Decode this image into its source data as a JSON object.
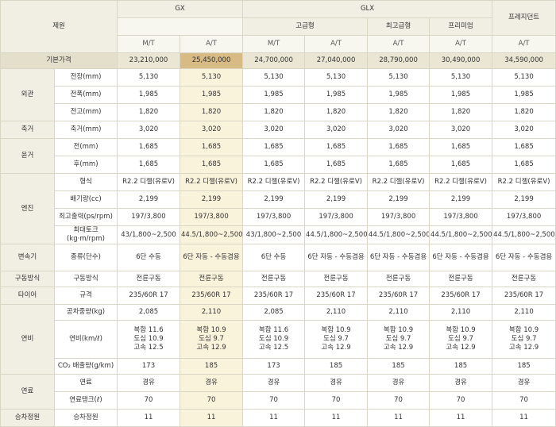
{
  "header": {
    "spec_label": "제원",
    "gx": "GX",
    "glx": "GLX",
    "president": "프레지던트",
    "sub_groups": {
      "standard": "고급형",
      "premium_top": "최고급형",
      "premium": "프리미엄"
    },
    "transmissions": [
      "M/T",
      "A/T",
      "M/T",
      "A/T",
      "A/T",
      "A/T",
      "A/T"
    ]
  },
  "price": {
    "label": "기본가격",
    "values": [
      "23,210,000",
      "25,450,000",
      "24,700,000",
      "27,040,000",
      "28,790,000",
      "30,490,000",
      "34,590,000"
    ]
  },
  "groups": {
    "exterior": "외관",
    "wheelbase": "축거",
    "tread": "윤거",
    "engine": "엔진",
    "transmission": "변속기",
    "drive": "구동방식",
    "tire": "타이어",
    "fuel_economy": "연비",
    "fuel": "연료",
    "seating": "승차정원"
  },
  "rows": [
    {
      "label": "전장(mm)",
      "values": [
        "5,130",
        "5,130",
        "5,130",
        "5,130",
        "5,130",
        "5,130",
        "5,130"
      ]
    },
    {
      "label": "전폭(mm)",
      "values": [
        "1,985",
        "1,985",
        "1,985",
        "1,985",
        "1,985",
        "1,985",
        "1,985"
      ]
    },
    {
      "label": "전고(mm)",
      "values": [
        "1,820",
        "1,820",
        "1,820",
        "1,820",
        "1,820",
        "1,820",
        "1,820"
      ]
    },
    {
      "label": "축거(mm)",
      "values": [
        "3,020",
        "3,020",
        "3,020",
        "3,020",
        "3,020",
        "3,020",
        "3,020"
      ]
    },
    {
      "label": "전(mm)",
      "values": [
        "1,685",
        "1,685",
        "1,685",
        "1,685",
        "1,685",
        "1,685",
        "1,685"
      ]
    },
    {
      "label": "후(mm)",
      "values": [
        "1,685",
        "1,685",
        "1,685",
        "1,685",
        "1,685",
        "1,685",
        "1,685"
      ]
    },
    {
      "label": "형식",
      "values": [
        "R2.2 디젤(유로V)",
        "R2.2 디젤(유로V)",
        "R2.2 디젤(유로V)",
        "R2.2 디젤(유로V)",
        "R2.2 디젤(유로V)",
        "R2.2 디젤(유로V)",
        "R2.2 디젤(유로V)"
      ]
    },
    {
      "label": "배기량(cc)",
      "values": [
        "2,199",
        "2,199",
        "2,199",
        "2,199",
        "2,199",
        "2,199",
        "2,199"
      ]
    },
    {
      "label": "최고출력(ps/rpm)",
      "values": [
        "197/3,800",
        "197/3,800",
        "197/3,800",
        "197/3,800",
        "197/3,800",
        "197/3,800",
        "197/3,800"
      ]
    },
    {
      "label": "최대토크(kg·m/rpm)",
      "values": [
        "43/1,800~2,500",
        "44.5/1,800~2,500",
        "43/1,800~2,500",
        "44.5/1,800~2,500",
        "44.5/1,800~2,500",
        "44.5/1,800~2,500",
        "44.5/1,800~2,500"
      ]
    },
    {
      "label": "종류(단수)",
      "values": [
        "6단 수동",
        "6단 자동 - 수동겸용",
        "6단 수동",
        "6단 자동 - 수동겸용",
        "6단 자동 - 수동겸용",
        "6단 자동 - 수동겸용",
        "6단 자동 - 수동겸용"
      ]
    },
    {
      "label": "구동방식",
      "values": [
        "전륜구동",
        "전륜구동",
        "전륜구동",
        "전륜구동",
        "전륜구동",
        "전륜구동",
        "전륜구동"
      ]
    },
    {
      "label": "규격",
      "values": [
        "235/60R 17",
        "235/60R 17",
        "235/60R 17",
        "235/60R 17",
        "235/60R 17",
        "235/60R 17",
        "235/60R 17"
      ]
    },
    {
      "label": "공차중량(kg)",
      "values": [
        "2,085",
        "2,110",
        "2,085",
        "2,110",
        "2,110",
        "2,110",
        "2,110"
      ]
    },
    {
      "label": "연비(km/ℓ)",
      "values": [
        "복합 11.6\n도심 10.9\n고속 12.5",
        "복합 10.9\n도심 9.7\n고속 12.9",
        "복합 11.6\n도심 10.9\n고속 12.5",
        "복합 10.9\n도심 9.7\n고속 12.9",
        "복합 10.9\n도심 9.7\n고속 12.9",
        "복합 10.9\n도심 9.7\n고속 12.9",
        "복합 10.9\n도심 9.7\n고속 12.9"
      ]
    },
    {
      "label": "CO₂ 배출량(g/km)",
      "values": [
        "173",
        "185",
        "173",
        "185",
        "185",
        "185",
        "185"
      ]
    },
    {
      "label": "연료",
      "values": [
        "경유",
        "경유",
        "경유",
        "경유",
        "경유",
        "경유",
        "경유"
      ]
    },
    {
      "label": "연료탱크(ℓ)",
      "values": [
        "70",
        "70",
        "70",
        "70",
        "70",
        "70",
        "70"
      ]
    },
    {
      "label": "승차정원",
      "values": [
        "11",
        "11",
        "11",
        "11",
        "11",
        "11",
        "11"
      ]
    }
  ]
}
